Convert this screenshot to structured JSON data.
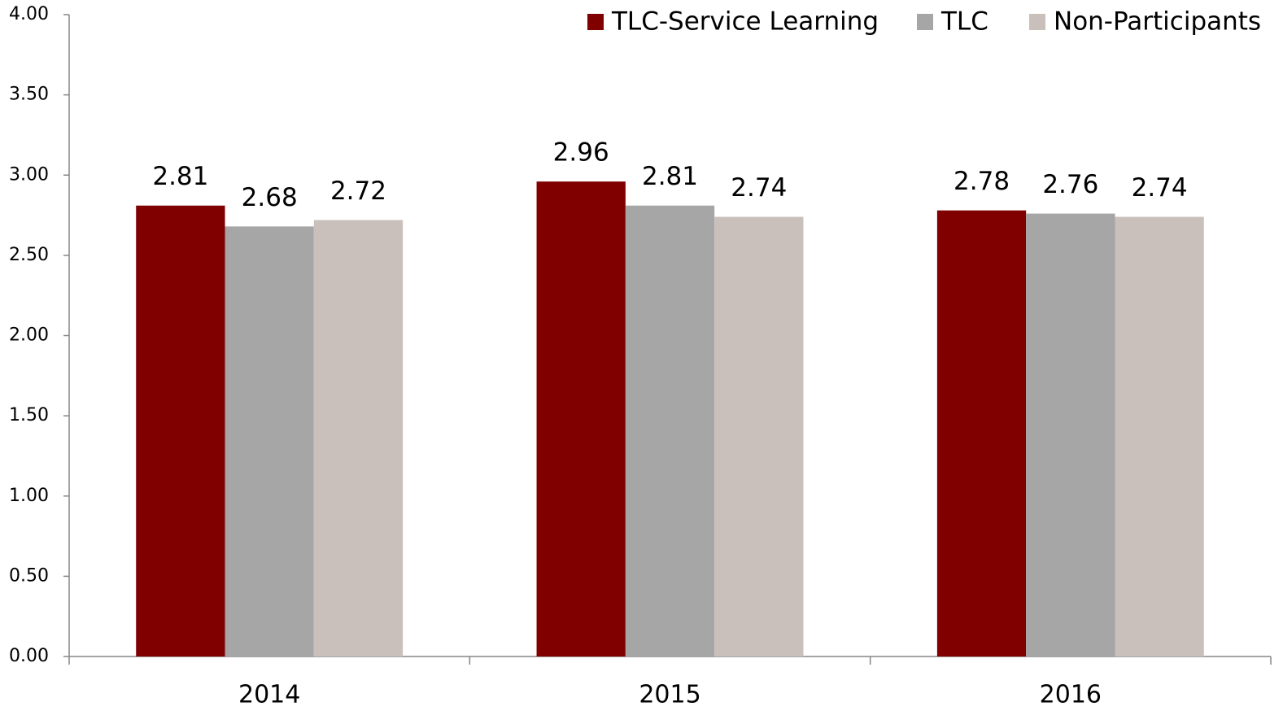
{
  "chart_data": {
    "type": "bar",
    "categories": [
      "2014",
      "2015",
      "2016"
    ],
    "series": [
      {
        "name": "TLC-Service Learning",
        "color": "#800000",
        "values": [
          2.81,
          2.96,
          2.78
        ]
      },
      {
        "name": "TLC",
        "color": "#a6a6a6",
        "values": [
          2.68,
          2.81,
          2.76
        ]
      },
      {
        "name": "Non-Participants",
        "color": "#c9c0bc",
        "values": [
          2.72,
          2.74,
          2.74
        ]
      }
    ],
    "ylim": [
      0,
      4
    ],
    "yticks": [
      {
        "value": 0,
        "label": "0.00"
      },
      {
        "value": 0.5,
        "label": "0.50"
      },
      {
        "value": 1,
        "label": "1.00"
      },
      {
        "value": 1.5,
        "label": "1.50"
      },
      {
        "value": 2,
        "label": "2.00"
      },
      {
        "value": 2.5,
        "label": "2.50"
      },
      {
        "value": 3,
        "label": "3.00"
      },
      {
        "value": 3.5,
        "label": "3.50"
      },
      {
        "value": 4,
        "label": "4.00"
      }
    ],
    "grid": false,
    "legend": "top-right"
  }
}
